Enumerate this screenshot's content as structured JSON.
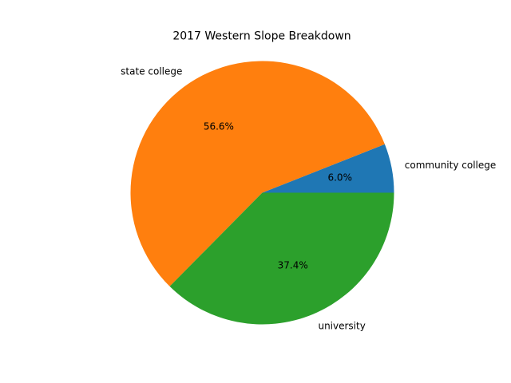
{
  "chart_data": {
    "type": "pie",
    "title": "2017 Western Slope Breakdown",
    "start_angle_deg": 0,
    "direction": "counterclockwise",
    "slices": [
      {
        "label": "community college",
        "value": 6.0,
        "pct_label": "6.0%",
        "color": "#1f77b4"
      },
      {
        "label": "state college",
        "value": 56.6,
        "pct_label": "56.6%",
        "color": "#ff7f0e"
      },
      {
        "label": "university",
        "value": 37.4,
        "pct_label": "37.4%",
        "color": "#2ca02c"
      }
    ]
  }
}
